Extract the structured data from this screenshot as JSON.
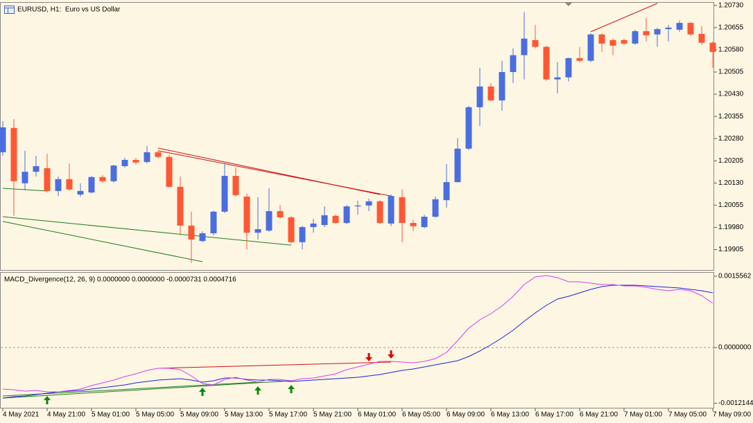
{
  "chart_data": [
    {
      "type": "candlestick",
      "title": "EURUSD, H1:  Euro vs US Dollar",
      "categories": [
        "4 May 2021",
        null,
        null,
        null,
        "4 May 21:00",
        null,
        null,
        null,
        "5 May 01:00",
        null,
        null,
        null,
        "5 May 05:00",
        null,
        null,
        null,
        "5 May 09:00",
        null,
        null,
        null,
        "5 May 13:00",
        null,
        null,
        null,
        "5 May 17:00",
        null,
        null,
        null,
        "5 May 21:00",
        null,
        null,
        null,
        "6 May 01:00",
        null,
        null,
        null,
        "6 May 05:00",
        null,
        null,
        null,
        "6 May 09:00",
        null,
        null,
        null,
        "6 May 13:00",
        null,
        null,
        null,
        "6 May 17:00",
        null,
        null,
        null,
        "6 May 21:00",
        null,
        null,
        null,
        "7 May 01:00",
        null,
        null,
        null,
        "7 May 05:00",
        null,
        null,
        null,
        "7 May 09:00"
      ],
      "open": [
        1.20234,
        1.20316,
        1.20129,
        1.20168,
        1.2018,
        1.20103,
        1.20143,
        1.20091,
        1.20098,
        1.2015,
        1.20136,
        1.20187,
        1.20208,
        1.20201,
        1.20234,
        1.20218,
        1.20117,
        1.19986,
        1.19934,
        1.1996,
        1.20033,
        1.20154,
        1.20084,
        1.19962,
        1.19969,
        1.20035,
        1.20014,
        1.1993,
        1.19981,
        1.19988,
        1.20019,
        1.19995,
        1.20051,
        1.20054,
        1.20068,
        1.19993,
        1.20082,
        1.19995,
        1.19981,
        1.20016,
        1.20072,
        1.20133,
        1.20246,
        1.20386,
        1.20456,
        1.20409,
        1.20505,
        1.20562,
        1.20613,
        1.2059,
        1.2048,
        1.20487,
        1.20552,
        1.20543,
        1.20632,
        1.20613,
        1.20613,
        1.20601,
        1.20643,
        1.20632,
        1.2065,
        1.20648,
        1.20671,
        1.20634,
        1.20604
      ],
      "high": [
        1.20339,
        1.20346,
        1.20239,
        1.20222,
        1.20229,
        1.20152,
        1.20196,
        1.20129,
        1.20154,
        1.20157,
        1.20192,
        1.20215,
        1.20215,
        1.20255,
        1.20239,
        1.20225,
        1.20152,
        1.20033,
        1.19967,
        1.20037,
        1.20194,
        1.20182,
        1.20094,
        1.20082,
        1.20112,
        1.20056,
        1.20019,
        1.19986,
        1.20009,
        1.20051,
        1.20023,
        1.20056,
        1.2007,
        1.20077,
        1.20072,
        1.20091,
        1.20108,
        1.20005,
        1.20023,
        1.20084,
        1.20194,
        1.20281,
        1.20391,
        1.20519,
        1.20468,
        1.20543,
        1.20585,
        1.20707,
        1.20664,
        1.20594,
        1.20538,
        1.20554,
        1.2059,
        1.20636,
        1.20636,
        1.20618,
        1.20618,
        1.20648,
        1.20688,
        1.20655,
        1.20664,
        1.20679,
        1.20674,
        1.2066,
        1.20608
      ],
      "low": [
        1.20222,
        1.20019,
        1.20105,
        1.20152,
        1.20098,
        1.20086,
        1.20103,
        1.20084,
        1.20094,
        1.20131,
        1.20131,
        1.20182,
        1.20192,
        1.20196,
        1.20213,
        1.20115,
        1.19953,
        1.1986,
        1.1993,
        1.19953,
        1.20028,
        1.20084,
        1.19906,
        1.19939,
        1.19965,
        1.20009,
        1.19925,
        1.19906,
        1.19962,
        1.19981,
        1.19993,
        1.19991,
        1.20023,
        1.20035,
        1.19991,
        1.19984,
        1.1993,
        1.19967,
        1.19977,
        1.20012,
        1.20047,
        1.20131,
        1.20241,
        1.20323,
        1.20405,
        1.20374,
        1.20468,
        1.2048,
        1.20585,
        1.20475,
        1.20433,
        1.20473,
        1.20538,
        1.20538,
        1.20573,
        1.20562,
        1.20597,
        1.20597,
        1.20608,
        1.2059,
        1.20608,
        1.20641,
        1.20627,
        1.20597,
        1.20519
      ],
      "close": [
        1.20318,
        1.20136,
        1.20168,
        1.20187,
        1.20103,
        1.20143,
        1.20108,
        1.20103,
        1.2015,
        1.20136,
        1.20189,
        1.20208,
        1.20199,
        1.20234,
        1.20218,
        1.20117,
        1.19986,
        1.19939,
        1.1996,
        1.20033,
        1.20154,
        1.20089,
        1.19962,
        1.19974,
        1.20035,
        1.20014,
        1.1993,
        1.19981,
        1.19993,
        1.20021,
        1.19995,
        1.20051,
        1.20054,
        1.20068,
        1.19995,
        1.20086,
        1.19995,
        1.19984,
        1.20016,
        1.20075,
        1.20133,
        1.20246,
        1.20386,
        1.20456,
        1.20409,
        1.20505,
        1.20562,
        1.20618,
        1.2059,
        1.2048,
        1.20487,
        1.20552,
        1.20543,
        1.20632,
        1.20601,
        1.20594,
        1.20601,
        1.20643,
        1.20629,
        1.2065,
        1.20655,
        1.20671,
        1.20632,
        1.20604,
        1.20573
      ],
      "up_color": "#4a6ee0",
      "down_color": "#ff5733",
      "ylim": [
        1.19836,
        1.20739
      ],
      "yticks": [
        {
          "value": 1.2073,
          "label": "1.20730"
        },
        {
          "value": 1.20655,
          "label": "1.20655"
        },
        {
          "value": 1.2058,
          "label": "1.20580"
        },
        {
          "value": 1.20505,
          "label": "1.20505"
        },
        {
          "value": 1.2043,
          "label": "1.20430"
        },
        {
          "value": 1.20355,
          "label": "1.20355"
        },
        {
          "value": 1.2028,
          "label": "1.20280"
        },
        {
          "value": 1.20205,
          "label": "1.20205"
        },
        {
          "value": 1.2013,
          "label": "1.20130"
        },
        {
          "value": 1.20055,
          "label": "1.20055"
        },
        {
          "value": 1.1998,
          "label": "1.19980"
        },
        {
          "value": 1.19905,
          "label": "1.19905"
        }
      ],
      "trendlines": [
        {
          "color": "#cc1111",
          "x": [
            14,
            34
          ],
          "y": [
            1.20248,
            1.20091
          ]
        },
        {
          "color": "#cc1111",
          "x": [
            14,
            35
          ],
          "y": [
            1.20239,
            1.20086
          ]
        },
        {
          "color": "#cc1111",
          "x": [
            53,
            59
          ],
          "y": [
            1.20641,
            1.20737
          ]
        },
        {
          "color": "#1d7d1d",
          "x": [
            0,
            4
          ],
          "y": [
            1.20112,
            1.20103
          ]
        },
        {
          "color": "#1d7d1d",
          "x": [
            0,
            26
          ],
          "y": [
            1.20016,
            1.1992
          ]
        },
        {
          "color": "#1d7d1d",
          "x": [
            0,
            18
          ],
          "y": [
            1.2,
            1.19864
          ]
        }
      ]
    },
    {
      "type": "line",
      "title": "MACD_Divergence(12, 26, 9) 0.0000000 0.0000000 -0.0000731 0.0004716",
      "series": [
        {
          "color": "#1c22d8",
          "values": [
            -0.0011023,
            -0.0010721,
            -0.001057,
            -0.0010268,
            -0.0009966,
            -0.0009664,
            -0.0009513,
            -0.0009362,
            -0.000906,
            -0.0008758,
            -0.0008456,
            -0.0008154,
            -0.0007701,
            -0.0007399,
            -0.0007097,
            -0.0006946,
            -0.0006795,
            -0.0007097,
            -0.000755,
            -0.0007248,
            -0.0006644,
            -0.0006644,
            -0.0006946,
            -0.0007097,
            -0.0007097,
            -0.0007248,
            -0.0007399,
            -0.0007248,
            -0.0007097,
            -0.0006946,
            -0.0006795,
            -0.0006644,
            -0.0006493,
            -0.0006191,
            -0.0005889,
            -0.0005436,
            -0.0004983,
            -0.0004681,
            -0.0004228,
            -0.0003775,
            -0.0003322,
            -0.0002869,
            -0.0001963,
            -7.55e-05,
            6.04e-05,
            0.0002114,
            0.0003775,
            0.0005738,
            0.000755,
            0.0009211,
            0.001057,
            0.0011174,
            0.0011929,
            0.0012684,
            0.0013288,
            0.001359,
            0.001359,
            0.001359,
            0.0013439,
            0.0013288,
            0.0013137,
            0.0012986,
            0.0012684,
            0.0012382,
            0.0011929
          ]
        },
        {
          "color": "#d43ff0",
          "values": [
            -0.000906,
            -0.0009211,
            -0.0009513,
            -0.0009362,
            -0.0009664,
            -0.0009664,
            -0.0009362,
            -0.000906,
            -0.0008305,
            -0.0007701,
            -0.0007097,
            -0.0006342,
            -0.0005738,
            -0.0004983,
            -0.000453,
            -0.000453,
            -0.0004832,
            -0.0006191,
            -0.0007852,
            -0.0008154,
            -0.0006946,
            -0.0006493,
            -0.0007097,
            -0.000755,
            -0.0006946,
            -0.0006946,
            -0.0007248,
            -0.0006795,
            -0.0006644,
            -0.0006191,
            -0.0005738,
            -0.0004832,
            -0.0004228,
            -0.0003624,
            -0.000302,
            -0.000302,
            -0.0003171,
            -0.0003322,
            -0.000302,
            -0.0002416,
            -0.0001057,
            0.000151,
            0.0004228,
            0.000604,
            0.0007399,
            0.000906,
            0.0011174,
            0.0013741,
            0.0015402,
            0.0015704,
            0.0015251,
            0.0014345,
            0.0014345,
            0.0014043,
            0.0013741,
            0.0013741,
            0.0013439,
            0.0013439,
            0.0013137,
            0.0012684,
            0.0012382,
            0.0012684,
            0.0012382,
            0.0011325,
            0.0009664
          ]
        }
      ],
      "ylim": [
        -0.0013288,
        0.0016308
      ],
      "yticks": [
        0.0015562,
        {
          "value": 0,
          "label": "0.0000000"
        },
        -0.0012144
      ],
      "zeroline": true,
      "trendlines": [
        {
          "color": "#cc1111",
          "x": [
            14,
            35
          ],
          "y": [
            -0.000453,
            -0.0003171
          ]
        },
        {
          "color": "#1d7d1d",
          "x": [
            0,
            26
          ],
          "y": [
            -0.0011023,
            -0.0007248
          ]
        },
        {
          "color": "#1d7d1d",
          "x": [
            0,
            23
          ],
          "y": [
            -0.001057,
            -0.000755
          ]
        }
      ],
      "signals": {
        "up": [
          4,
          18,
          23,
          26
        ],
        "down": [
          33,
          35
        ],
        "up_color": "#0a8a0a",
        "down_color": "#e00000"
      }
    }
  ]
}
